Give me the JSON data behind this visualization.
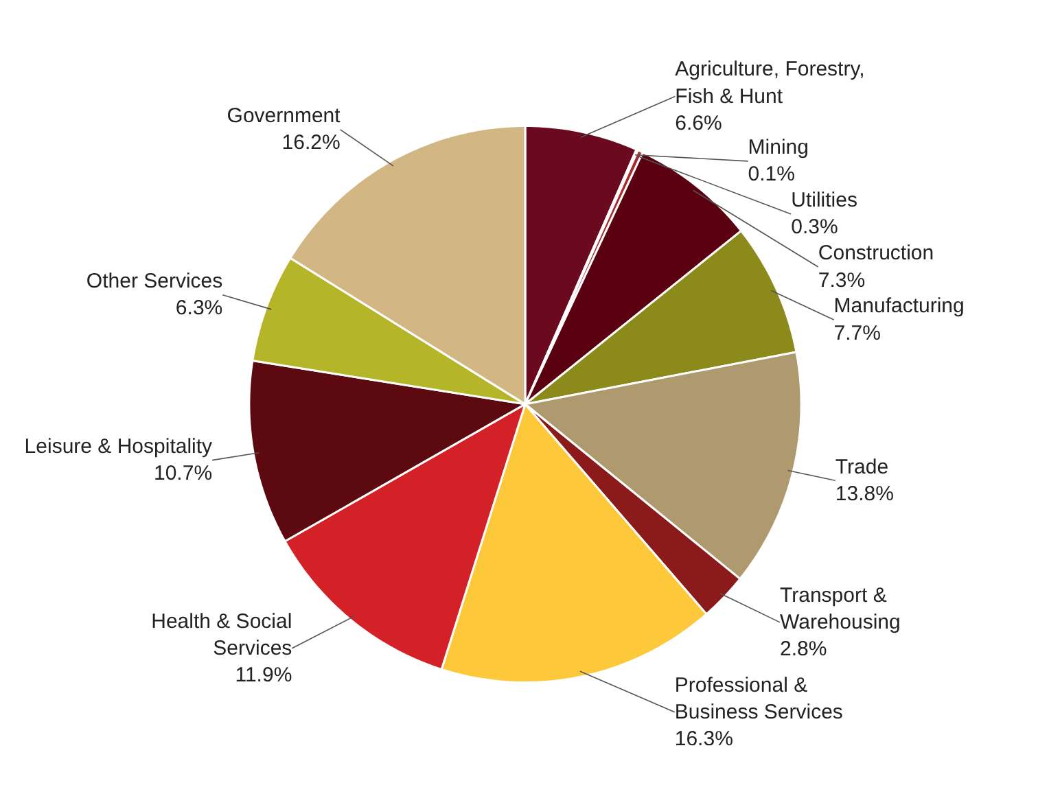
{
  "chart_data": {
    "type": "pie",
    "categories": [
      "Agriculture, Forestry, Fish & Hunt",
      "Mining",
      "Utilities",
      "Construction",
      "Manufacturing",
      "Trade",
      "Transport & Warehousing",
      "Professional & Business Services",
      "Health & Social Services",
      "Leisure & Hospitality",
      "Other Services",
      "Government"
    ],
    "values": [
      6.6,
      0.1,
      0.3,
      7.3,
      7.7,
      13.8,
      2.8,
      16.3,
      11.9,
      10.7,
      6.3,
      16.2
    ],
    "colors": [
      "#6b0a1e",
      "#8a1a2a",
      "#a52a2a",
      "#5a0010",
      "#8c8a1a",
      "#ae9a6e",
      "#8b1a1a",
      "#fdc93a",
      "#d42027",
      "#5c0a0f",
      "#b5b52a",
      "#d2b683"
    ],
    "value_labels": [
      "6.6%",
      "0.1%",
      "0.3%",
      "7.3%",
      "7.7%",
      "13.8%",
      "2.8%",
      "16.3%",
      "11.9%",
      "10.7%",
      "6.3%",
      "16.2%"
    ]
  }
}
